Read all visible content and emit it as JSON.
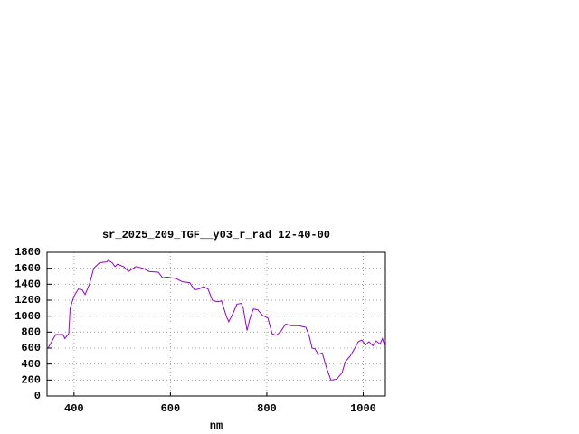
{
  "chart_data": {
    "type": "line",
    "title": "sr_2025_209_TGF__y03_r_rad 12-40-00",
    "x_label": "nm",
    "x": [
      346,
      362,
      377,
      381,
      389,
      392,
      400,
      409,
      417,
      423,
      432,
      441,
      453,
      468,
      471,
      479,
      485,
      490,
      503,
      513,
      528,
      543,
      556,
      575,
      584,
      593,
      612,
      625,
      640,
      650,
      659,
      669,
      678,
      687,
      697,
      706,
      716,
      721,
      731,
      738,
      747,
      751,
      759,
      764,
      772,
      781,
      791,
      802,
      811,
      819,
      828,
      839,
      851,
      866,
      881,
      888,
      894,
      900,
      907,
      915,
      924,
      933,
      945,
      956,
      963,
      973,
      978,
      990,
      997,
      1005,
      1012,
      1020,
      1027,
      1035,
      1040,
      1044,
      1046
    ],
    "series": [
      {
        "color": "#9400d3",
        "values": [
          600,
          770,
          770,
          720,
          780,
          1100,
          1250,
          1340,
          1330,
          1270,
          1400,
          1600,
          1670,
          1680,
          1700,
          1670,
          1620,
          1650,
          1620,
          1560,
          1620,
          1600,
          1560,
          1550,
          1480,
          1490,
          1470,
          1430,
          1420,
          1330,
          1340,
          1370,
          1340,
          1200,
          1180,
          1190,
          1000,
          930,
          1050,
          1150,
          1160,
          1100,
          820,
          950,
          1090,
          1080,
          1010,
          980,
          780,
          760,
          800,
          900,
          880,
          880,
          860,
          750,
          600,
          590,
          520,
          540,
          350,
          200,
          210,
          290,
          430,
          500,
          550,
          680,
          700,
          640,
          680,
          630,
          690,
          650,
          720,
          640,
          700
        ]
      }
    ],
    "xlim": [
      344,
      1046
    ],
    "ylim": [
      0,
      1800
    ],
    "xticks": [
      400,
      600,
      800,
      1000
    ],
    "yticks": [
      0,
      200,
      400,
      600,
      800,
      1000,
      1200,
      1400,
      1600,
      1800
    ],
    "grid": true
  }
}
